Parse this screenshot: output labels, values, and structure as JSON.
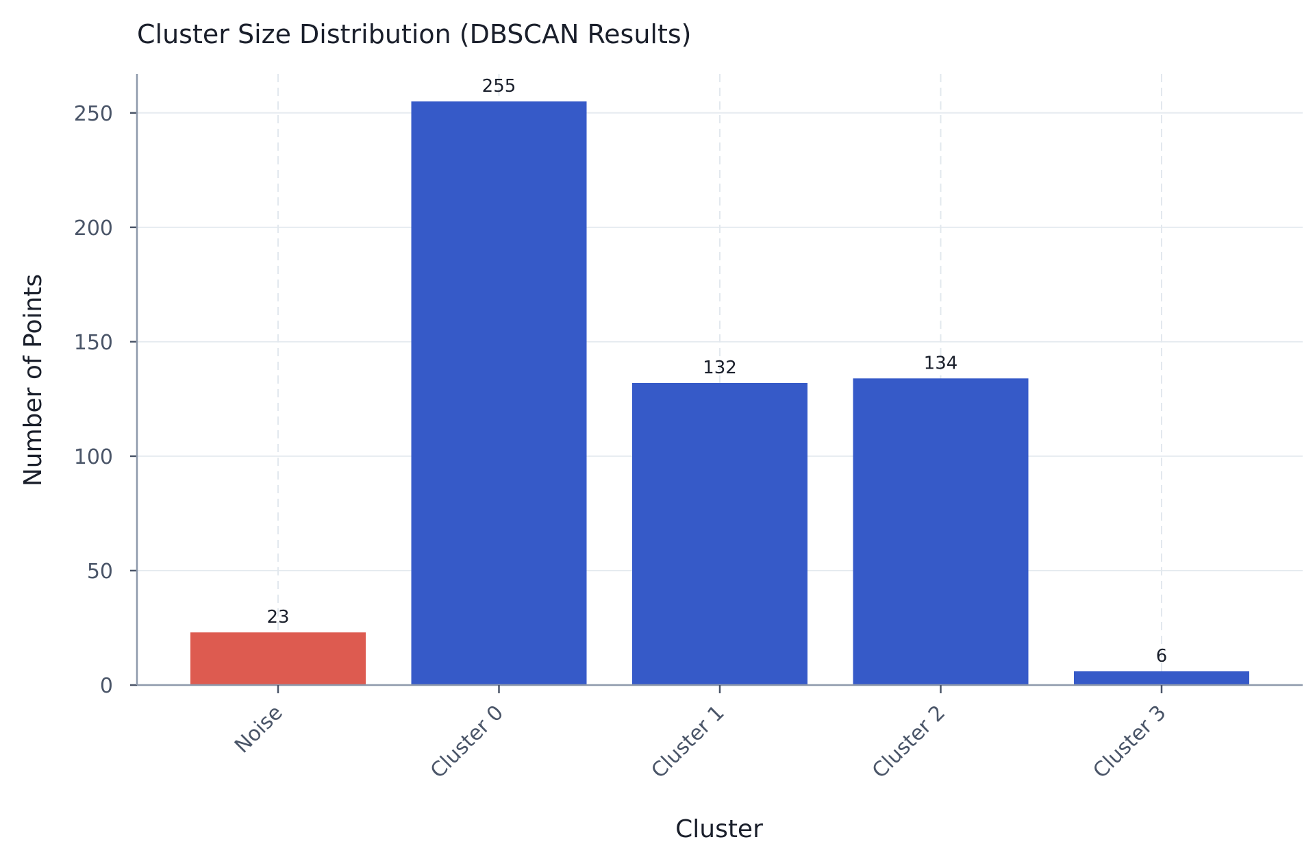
{
  "chart_data": {
    "type": "bar",
    "title": "Cluster Size Distribution (DBSCAN Results)",
    "xlabel": "Cluster",
    "ylabel": "Number of Points",
    "categories": [
      "Noise",
      "Cluster 0",
      "Cluster 1",
      "Cluster 2",
      "Cluster 3"
    ],
    "values": [
      23,
      255,
      132,
      134,
      6
    ],
    "colors": [
      "#dd5b50",
      "#365ac8",
      "#365ac8",
      "#365ac8",
      "#365ac8"
    ],
    "ylim": [
      0,
      267
    ],
    "yticks": [
      0,
      50,
      100,
      150,
      200,
      250
    ],
    "grid": true,
    "legend": "none"
  }
}
